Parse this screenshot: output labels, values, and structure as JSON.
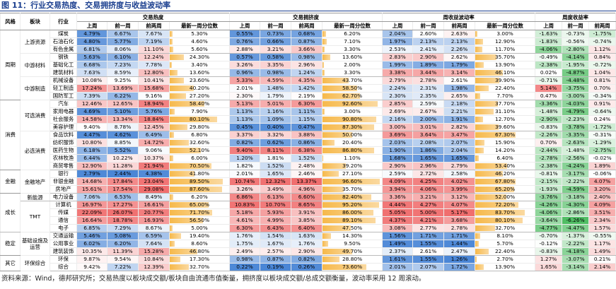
{
  "title": "图 11：行业交易热度、交易拥挤度与收益波动率",
  "table": {
    "lead_headers": [
      "风格",
      "板块",
      "行业"
    ],
    "groups": [
      {
        "name": "交易热度",
        "columns": [
          "上周",
          "前一周",
          "前两周",
          "最新一周分位数"
        ]
      },
      {
        "name": "交易拥挤度",
        "columns": [
          "上周",
          "前一周",
          "前两周",
          "最新一周分位数"
        ]
      },
      {
        "name": "周收益波动率",
        "columns": [
          "上周",
          "前一周",
          "前两周",
          "最新一周分位数"
        ]
      },
      {
        "name": "周度收益率",
        "columns": [
          "上周",
          "前一周",
          "前两周"
        ]
      }
    ],
    "sections": [
      {
        "style": "周期",
        "blocks": [
          {
            "name": "上游资源",
            "rows": [
              {
                "industry": "煤炭",
                "cells": [
                  "4.79%",
                  "6.67%",
                  "7.67%",
                  "5.30%",
                  "0.55%",
                  "0.73%",
                  "0.68%",
                  "6.20%",
                  "2.04%",
                  "2.60%",
                  "2.63%",
                  "3.00%",
                  "-1.63%",
                  "-0.73%",
                  "-1.75%"
                ]
              },
              {
                "industry": "石油石化",
                "cells": [
                  "4.80%",
                  "5.77%",
                  "7.19%",
                  "4.60%",
                  "0.76%",
                  "0.66%",
                  "0.87%",
                  "7.10%",
                  "1.97%",
                  "2.13%",
                  "2.13%",
                  "12.90%",
                  "-1.83%",
                  "-0.56%",
                  "-0.74%"
                ]
              },
              {
                "industry": "有色金属",
                "cells": [
                  "6.81%",
                  "8.06%",
                  "11.10%",
                  "5.60%",
                  "2.88%",
                  "3.21%",
                  "3.66%",
                  "3.30%",
                  "2.53%",
                  "2.41%",
                  "2.26%",
                  "11.70%",
                  "-4.06%",
                  "-2.80%",
                  "1.12%"
                ]
              }
            ]
          },
          {
            "name": "中游材料",
            "rows": [
              {
                "industry": "钢铁",
                "cells": [
                  "5.63%",
                  "6.10%",
                  "12.24%",
                  "24.30%",
                  "0.57%",
                  "0.58%",
                  "0.98%",
                  "13.60%",
                  "2.83%",
                  "2.90%",
                  "2.62%",
                  "35.70%",
                  "-0.49%",
                  "-4.14%",
                  "0.84%"
                ]
              },
              {
                "industry": "基础化工",
                "cells": [
                  "6.68%",
                  "7.23%",
                  "7.78%",
                  "3.40%",
                  "3.26%",
                  "3.35%",
                  "2.96%",
                  "2.00%",
                  "1.99%",
                  "1.89%",
                  "1.79%",
                  "13.90%",
                  "-2.38%",
                  "-1.95%",
                  "-0.72%"
                ]
              },
              {
                "industry": "建筑材料",
                "cells": [
                  "7.63%",
                  "8.59%",
                  "12.80%",
                  "13.60%",
                  "0.96%",
                  "0.98%",
                  "1.24%",
                  "3.30%",
                  "3.38%",
                  "3.44%",
                  "3.14%",
                  "46.10%",
                  "0.02%",
                  "-4.87%",
                  "1.04%"
                ]
              }
            ]
          },
          {
            "name": "中游制造",
            "rows": [
              {
                "industry": "机械设备",
                "cells": [
                  "10.08%",
                  "9.25%",
                  "10.41%",
                  "23.60%",
                  "5.33%",
                  "4.59%",
                  "4.35%",
                  "43.70%",
                  "2.79%",
                  "2.78%",
                  "2.61%",
                  "39.90%",
                  "-0.71%",
                  "-4.48%",
                  "0.81%"
                ]
              },
              {
                "industry": "轻工制造",
                "cells": [
                  "17.24%",
                  "13.69%",
                  "15.68%",
                  "40.20%",
                  "2.01%",
                  "1.48%",
                  "1.42%",
                  "58.50%",
                  "2.24%",
                  "2.31%",
                  "1.98%",
                  "22.40%",
                  "5.14%",
                  "-3.75%",
                  "0.70%"
                ]
              },
              {
                "industry": "国防军工",
                "cells": [
                  "7.39%",
                  "6.22%",
                  "9.16%",
                  "27.20%",
                  "2.30%",
                  "1.79%",
                  "2.19%",
                  "62.70%",
                  "2.30%",
                  "2.35%",
                  "2.65%",
                  "7.70%",
                  "0.47%",
                  "-3.00%",
                  "-0.34%"
                ]
              }
            ]
          }
        ]
      },
      {
        "style": "消费",
        "blocks": [
          {
            "name": "可选消费",
            "rows": [
              {
                "industry": "汽车",
                "cells": [
                  "12.46%",
                  "12.65%",
                  "18.94%",
                  "58.40%",
                  "5.13%",
                  "5.01%",
                  "6.30%",
                  "92.60%",
                  "2.85%",
                  "2.59%",
                  "2.18%",
                  "37.70%",
                  "-3.36%",
                  "-4.03%",
                  "0.91%"
                ]
              },
              {
                "industry": "家用电器",
                "cells": [
                  "4.69%",
                  "5.10%",
                  "5.76%",
                  "7.90%",
                  "1.13%",
                  "1.16%",
                  "1.11%",
                  "3.00%",
                  "2.69%",
                  "2.67%",
                  "2.21%",
                  "31.10%",
                  "-1.48%",
                  "-4.79%",
                  "-0.64%"
                ]
              },
              {
                "industry": "社会服务",
                "cells": [
                  "14.58%",
                  "13.34%",
                  "18.84%",
                  "80.10%",
                  "1.13%",
                  "1.09%",
                  "1.15%",
                  "90.80%",
                  "2.16%",
                  "2.00%",
                  "1.91%",
                  "12.70%",
                  "-2.90%",
                  "-2.23%",
                  "0.24%"
                ]
              },
              {
                "industry": "美容护理",
                "cells": [
                  "9.40%",
                  "8.78%",
                  "12.45%",
                  "29.80%",
                  "0.45%",
                  "0.40%",
                  "0.47%",
                  "87.30%",
                  "3.00%",
                  "3.01%",
                  "2.82%",
                  "39.60%",
                  "-0.83%",
                  "-3.78%",
                  "-1.72%"
                ]
              }
            ]
          },
          {
            "name": "必选消费",
            "rows": [
              {
                "industry": "食品饮料",
                "cells": [
                  "4.47%",
                  "4.62%",
                  "6.49%",
                  "6.80%",
                  "3.37%",
                  "3.32%",
                  "3.88%",
                  "50.00%",
                  "3.69%",
                  "3.64%",
                  "3.47%",
                  "67.30%",
                  "-2.26%",
                  "-3.35%",
                  "-0.31%"
                ]
              },
              {
                "industry": "纺织服饰",
                "cells": [
                  "10.80%",
                  "8.85%",
                  "14.72%",
                  "32.60%",
                  "0.82%",
                  "0.62%",
                  "0.86%",
                  "20.40%",
                  "2.03%",
                  "2.08%",
                  "2.07%",
                  "15.90%",
                  "0.70%",
                  "-2.63%",
                  "-1.29%"
                ]
              },
              {
                "industry": "医药生物",
                "cells": [
                  "6.18%",
                  "5.52%",
                  "9.06%",
                  "52.10%",
                  "9.40%",
                  "8.11%",
                  "6.38%",
                  "86.80%",
                  "1.90%",
                  "1.86%",
                  "2.04%",
                  "14.20%",
                  "-2.44%",
                  "-1.48%",
                  "-2.75%"
                ]
              },
              {
                "industry": "农林牧渔",
                "cells": [
                  "6.44%",
                  "10.22%",
                  "10.37%",
                  "6.00%",
                  "1.20%",
                  "1.81%",
                  "1.52%",
                  "1.10%",
                  "1.68%",
                  "1.65%",
                  "1.65%",
                  "6.40%",
                  "-2.78%",
                  "-2.56%",
                  "-0.02%"
                ]
              },
              {
                "industry": "商贸零售",
                "cells": [
                  "12.90%",
                  "11.28%",
                  "21.94%",
                  "70.50%",
                  "1.82%",
                  "1.52%",
                  "2.48%",
                  "39.20%",
                  "2.90%",
                  "2.96%",
                  "2.79%",
                  "53.40%",
                  "-2.38%",
                  "-4.24%",
                  "1.89%"
                ]
              }
            ]
          }
        ]
      },
      {
        "style": "金融",
        "blocks": [
          {
            "name": "金融地产",
            "rows": [
              {
                "industry": "银行",
                "cells": [
                  "2.79%",
                  "2.44%",
                  "4.38%",
                  "41.80%",
                  "2.01%",
                  "1.65%",
                  "2.46%",
                  "27.10%",
                  "2.59%",
                  "2.72%",
                  "2.58%",
                  "46.20%",
                  "-0.81%",
                  "-3.17%",
                  "-0.06%"
                ]
              },
              {
                "industry": "非银金融",
                "cells": [
                  "14.68%",
                  "17.84%",
                  "23.04%",
                  "89.50%",
                  "10.74%",
                  "12.32%",
                  "13.37%",
                  "96.60%",
                  "4.09%",
                  "4.25%",
                  "4.02%",
                  "67.80%",
                  "-2.15%",
                  "-2.22%",
                  "4.07%"
                ]
              },
              {
                "industry": "房地产",
                "cells": [
                  "15.61%",
                  "17.54%",
                  "29.08%",
                  "87.60%",
                  "3.26%",
                  "3.49%",
                  "4.96%",
                  "35.70%",
                  "3.94%",
                  "4.06%",
                  "3.99%",
                  "65.20%",
                  "-1.93%",
                  "-4.59%",
                  "3.20%"
                ]
              }
            ]
          }
        ]
      },
      {
        "style": "成长",
        "blocks": [
          {
            "name": "新能源",
            "rows": [
              {
                "industry": "电力设备",
                "cells": [
                  "7.06%",
                  "6.53%",
                  "8.49%",
                  "6.20%",
                  "6.86%",
                  "6.13%",
                  "6.60%",
                  "82.40%",
                  "3.36%",
                  "3.21%",
                  "3.12%",
                  "52.00%",
                  "-3.76%",
                  "-3.18%",
                  "2.40%"
                ]
              }
            ]
          },
          {
            "name": "TMT",
            "rows": [
              {
                "industry": "计算机",
                "cells": [
                  "16.97%",
                  "17.27%",
                  "16.61%",
                  "65.00%",
                  "10.83%",
                  "10.70%",
                  "8.65%",
                  "95.20%",
                  "4.44%",
                  "4.27%",
                  "4.07%",
                  "72.20%",
                  "-4.26%",
                  "-4.30%",
                  "4.09%"
                ]
              },
              {
                "industry": "传媒",
                "cells": [
                  "22.09%",
                  "26.07%",
                  "20.77%",
                  "71.70%",
                  "5.18%",
                  "5.93%",
                  "3.91%",
                  "86.00%",
                  "5.05%",
                  "5.00%",
                  "5.17%",
                  "83.70%",
                  "-4.06%",
                  "-2.86%",
                  "3.51%"
                ]
              },
              {
                "industry": "通信",
                "cells": [
                  "16.64%",
                  "18.78%",
                  "16.93%",
                  "56.50%",
                  "4.61%",
                  "4.99%",
                  "3.85%",
                  "89.10%",
                  "4.37%",
                  "4.21%",
                  "3.68%",
                  "80.10%",
                  "-3.64%",
                  "-6.26%",
                  "2.34%"
                ]
              },
              {
                "industry": "电子",
                "cells": [
                  "6.85%",
                  "7.29%",
                  "8.67%",
                  "5.00%",
                  "6.30%",
                  "6.43%",
                  "6.40%",
                  "47.50%",
                  "3.08%",
                  "2.77%",
                  "2.78%",
                  "32.70%",
                  "-4.77%",
                  "-4.47%",
                  "1.57%"
                ]
              }
            ]
          }
        ]
      },
      {
        "style": "稳定",
        "blocks": [
          {
            "name": "基础设施及运营",
            "rows": [
              {
                "industry": "交通运输",
                "cells": [
                  "5.46%",
                  "5.08%",
                  "6.59%",
                  "19.40%",
                  "1.76%",
                  "1.54%",
                  "1.63%",
                  "14.30%",
                  "1.56%",
                  "1.71%",
                  "1.71%",
                  "8.10%",
                  "-0.70%",
                  "-1.37%",
                  "-0.55%"
                ]
              },
              {
                "industry": "公用事业",
                "cells": [
                  "6.02%",
                  "6.20%",
                  "7.64%",
                  "8.60%",
                  "1.75%",
                  "1.67%",
                  "1.76%",
                  "9.50%",
                  "1.49%",
                  "1.55%",
                  "1.44%",
                  "5.70%",
                  "-0.12%",
                  "-2.22%",
                  "1.17%"
                ]
              },
              {
                "industry": "建筑装饰",
                "cells": [
                  "10.35%",
                  "11.39%",
                  "15.28%",
                  "46.80%",
                  "2.49%",
                  "2.57%",
                  "2.90%",
                  "49.70%",
                  "2.37%",
                  "2.61%",
                  "2.47%",
                  "22.40%",
                  "-0.83%",
                  "-4.18%",
                  "1.49%"
                ]
              }
            ]
          }
        ]
      },
      {
        "style": "其它",
        "blocks": [
          {
            "name": "环保综合",
            "rows": [
              {
                "industry": "环保",
                "cells": [
                  "9.87%",
                  "9.54%",
                  "10.84%",
                  "17.30%",
                  "0.98%",
                  "0.87%",
                  "0.82%",
                  "28.80%",
                  "1.61%",
                  "1.55%",
                  "1.26%",
                  "2.70%",
                  "1.27%",
                  "-3.07%",
                  "0.21%"
                ]
              },
              {
                "industry": "综合",
                "cells": [
                  "9.42%",
                  "7.22%",
                  "12.39%",
                  "32.70%",
                  "0.22%",
                  "0.19%",
                  "0.26%",
                  "73.60%",
                  "2.01%",
                  "2.07%",
                  "1.72%",
                  "13.90%",
                  "1.65%",
                  "-3.14%",
                  "2.14%"
                ]
              }
            ]
          }
        ]
      }
    ]
  },
  "source": "资料来源：Wind，德邦研究所；交易热度以板块成交额/板块自由流通市值衡量，拥挤度以板块成交额/总成交额衡量，波动率采用 12 周滚动。"
}
